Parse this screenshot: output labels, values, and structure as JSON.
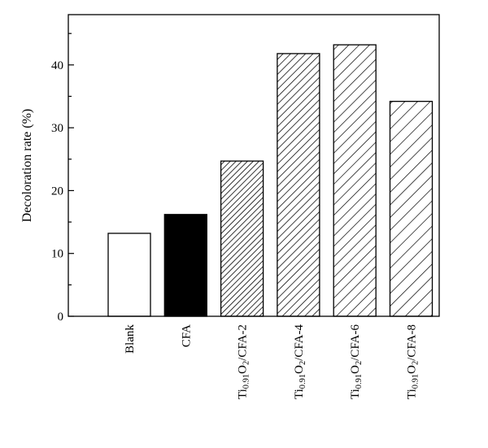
{
  "chart_data": {
    "type": "bar",
    "ylabel": "Decoloration rate (%)",
    "xlabel": "",
    "ylim": [
      0,
      48
    ],
    "yticks": [
      0,
      10,
      20,
      30,
      40
    ],
    "grid": false,
    "categories": [
      "Blank",
      "CFA",
      "Ti0.91O2/CFA-2",
      "Ti0.91O2/CFA-4",
      "Ti0.91O2/CFA-6",
      "Ti0.91O2/CFA-8"
    ],
    "category_labels": [
      {
        "parts": [
          {
            "t": "Blank",
            "sub": false
          }
        ]
      },
      {
        "parts": [
          {
            "t": "CFA",
            "sub": false
          }
        ]
      },
      {
        "parts": [
          {
            "t": "Ti",
            "sub": false
          },
          {
            "t": "0.91",
            "sub": true
          },
          {
            "t": "O",
            "sub": false
          },
          {
            "t": "2",
            "sub": true
          },
          {
            "t": "/CFA-2",
            "sub": false
          }
        ]
      },
      {
        "parts": [
          {
            "t": "Ti",
            "sub": false
          },
          {
            "t": "0.91",
            "sub": true
          },
          {
            "t": "O",
            "sub": false
          },
          {
            "t": "2",
            "sub": true
          },
          {
            "t": "/CFA-4",
            "sub": false
          }
        ]
      },
      {
        "parts": [
          {
            "t": "Ti",
            "sub": false
          },
          {
            "t": "0.91",
            "sub": true
          },
          {
            "t": "O",
            "sub": false
          },
          {
            "t": "2",
            "sub": true
          },
          {
            "t": "/CFA-6",
            "sub": false
          }
        ]
      },
      {
        "parts": [
          {
            "t": "Ti",
            "sub": false
          },
          {
            "t": "0.91",
            "sub": true
          },
          {
            "t": "O",
            "sub": false
          },
          {
            "t": "2",
            "sub": true
          },
          {
            "t": "/CFA-8",
            "sub": false
          }
        ]
      }
    ],
    "values": [
      13.2,
      16.2,
      24.7,
      41.8,
      43.2,
      34.2
    ],
    "bar_fills": [
      "empty",
      "solid",
      "dense-hatch",
      "medium-hatch",
      "wide-hatch",
      "widest-hatch"
    ]
  }
}
